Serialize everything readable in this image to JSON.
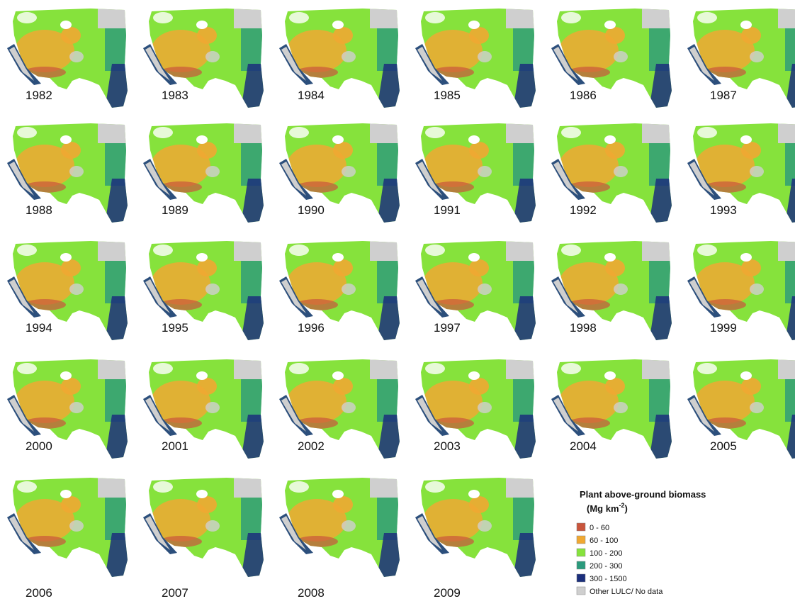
{
  "years": [
    "1982",
    "1983",
    "1984",
    "1985",
    "1986",
    "1987",
    "1988",
    "1989",
    "1990",
    "1991",
    "1992",
    "1993",
    "1994",
    "1995",
    "1996",
    "1997",
    "1998",
    "1999",
    "2000",
    "2001",
    "2002",
    "2003",
    "2004",
    "2005",
    "2006",
    "2007",
    "2008",
    "2009"
  ],
  "legend": {
    "title": "Plant above-ground biomass",
    "unit": "(Mg km",
    "unit_superscript": "-2",
    "unit_end": ")",
    "entries": [
      {
        "label": "0 - 60",
        "color": "#c9553c"
      },
      {
        "label": "60 - 100",
        "color": "#f0a832"
      },
      {
        "label": "100 - 200",
        "color": "#86e23c"
      },
      {
        "label": "200 - 300",
        "color": "#2a9a7c"
      },
      {
        "label": "300 - 1500",
        "color": "#1b2f7c"
      },
      {
        "label": "Other LULC/ No data",
        "color": "#cfcfcf"
      }
    ]
  }
}
